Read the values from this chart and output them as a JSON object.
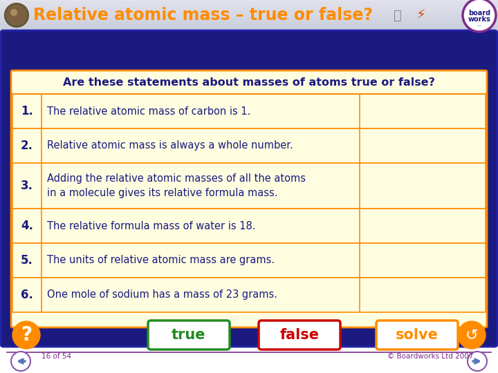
{
  "title": "Relative atomic mass – true or false?",
  "title_color": "#FF8C00",
  "header_bg_top": "#D8DCE8",
  "header_bg_bot": "#B0B8CC",
  "main_bg": "#1a1a80",
  "table_bg": "#FFFDE0",
  "table_border_color": "#FF8C00",
  "table_header_bg": "#FFFDE0",
  "header_text": "Are these statements about masses of atoms true or false?",
  "header_text_color": "#1a1a80",
  "statements": [
    "The relative atomic mass of carbon is 1.",
    "Relative atomic mass is always a whole number.",
    "Adding the relative atomic masses of all the atoms\nin a molecule gives its relative formula mass.",
    "The relative formula mass of water is 18.",
    "The units of relative atomic mass are grams.",
    "One mole of sodium has a mass of 23 grams."
  ],
  "true_btn_color": "#228B22",
  "true_btn_text": "true",
  "false_btn_color": "#CC0000",
  "false_btn_text": "false",
  "solve_btn_color": "#FF8C00",
  "solve_btn_text": "solve",
  "footer_text_left": "16 of 54",
  "footer_text_right": "© Boardworks Ltd 2007",
  "footer_color": "#7B2D8B",
  "statement_text_color": "#1a1a80",
  "number_text_color": "#1a1a80",
  "orange_circle_color": "#FF8C00",
  "nav_circle_color": "#8855AA",
  "nav_arrow_color": "#5577BB"
}
